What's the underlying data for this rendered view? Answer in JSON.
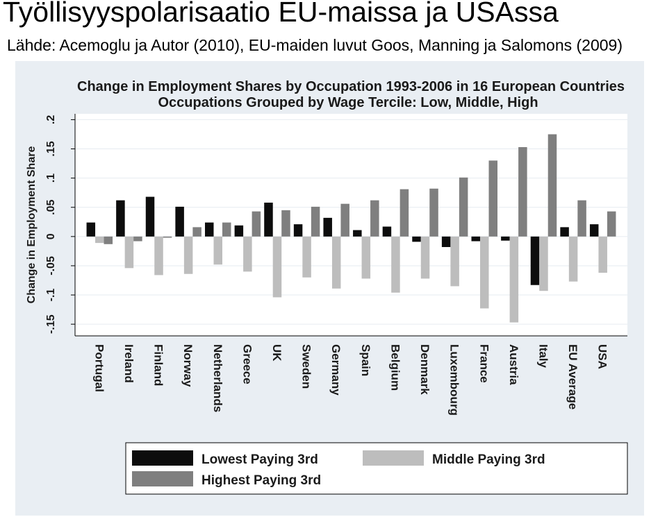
{
  "slide": {
    "title": "Työllisyyspolarisaatio EU-maissa ja USAssa",
    "source": "Lähde: Acemoglu ja Autor (2010), EU-maiden luvut Goos, Manning ja Salomons (2009)"
  },
  "chart_data": {
    "type": "bar",
    "title": "Change in Employment Shares by Occupation 1993-2006 in 16 European Countries",
    "subtitle": "Occupations Grouped by Wage Tercile: Low, Middle, High",
    "ylabel": "Change in Employment Share",
    "xlabel": "",
    "ylim": [
      -0.15,
      0.2
    ],
    "yticks": [
      -0.15,
      -0.1,
      -0.05,
      0,
      0.05,
      0.1,
      0.15,
      0.2
    ],
    "ytick_labels": [
      "-.15",
      "-.1",
      "-.05",
      "0",
      ".05",
      ".1",
      ".15",
      ".2"
    ],
    "grid": true,
    "legend_position": "bottom",
    "categories": [
      "Portugal",
      "Ireland",
      "Finland",
      "Norway",
      "Netherlands",
      "Greece",
      "UK",
      "Sweden",
      "Germany",
      "Spain",
      "Belgium",
      "Denmark",
      "Luxembourg",
      "France",
      "Austria",
      "Italy",
      "EU Average",
      "USA"
    ],
    "series": [
      {
        "name": "Lowest Paying 3rd",
        "color": "#0d0d0d",
        "values": [
          0.024,
          0.062,
          0.068,
          0.051,
          0.024,
          0.019,
          0.058,
          0.021,
          0.032,
          0.011,
          0.017,
          -0.009,
          -0.018,
          -0.008,
          -0.007,
          -0.083,
          0.016,
          0.021
        ]
      },
      {
        "name": "Middle Paying 3rd",
        "color": "#bdbdbd",
        "values": [
          -0.011,
          -0.054,
          -0.066,
          -0.064,
          -0.048,
          -0.06,
          -0.104,
          -0.07,
          -0.089,
          -0.072,
          -0.096,
          -0.072,
          -0.085,
          -0.123,
          -0.147,
          -0.093,
          -0.077,
          -0.062
        ]
      },
      {
        "name": "Highest Paying 3rd",
        "color": "#7f7f7f",
        "values": [
          -0.013,
          -0.008,
          -0.002,
          0.016,
          0.024,
          0.043,
          0.045,
          0.051,
          0.056,
          0.062,
          0.081,
          0.082,
          0.101,
          0.13,
          0.153,
          0.175,
          0.062,
          0.043
        ]
      }
    ]
  }
}
